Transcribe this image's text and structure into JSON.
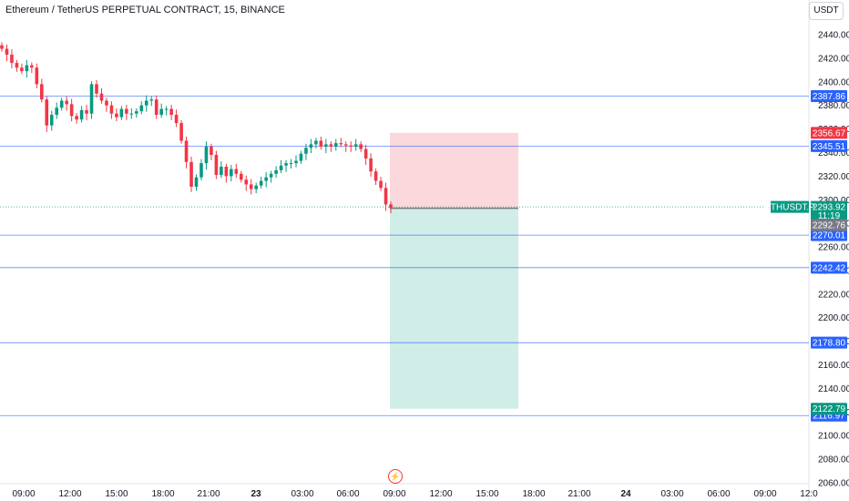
{
  "header": {
    "title": "Ethereum / TetherUS PERPETUAL CONTRACT, 15, BINANCE",
    "currency": "USDT"
  },
  "colors": {
    "up": "#089981",
    "down": "#f23645",
    "line_blue": "#2962ff",
    "stop_fill": "#f7c3c7",
    "target_fill": "#b8e3da",
    "last_price": "#089981"
  },
  "icons": {
    "event": "lightning-icon"
  },
  "chart_data": {
    "type": "candlestick",
    "symbol_label": "ETHUSDT.P",
    "countdown": "11:19",
    "y_axis": {
      "range": [
        2060,
        2450
      ],
      "ticks": [
        2060,
        2080,
        2100,
        2120,
        2140,
        2160,
        2180,
        2200,
        2220,
        2240,
        2260,
        2280,
        2300,
        2320,
        2340,
        2360,
        2380,
        2400,
        2420,
        2440
      ],
      "tick_labels": [
        "2060.00",
        "2080.00",
        "2100.00",
        "2120.00",
        "2140.00",
        "2160.00",
        "2180.00",
        "2200.00",
        "2220.00",
        "2240.00",
        "2260.00",
        "2280.00",
        "2300.00",
        "2320.00",
        "2340.00",
        "2360.00",
        "2380.00",
        "2400.00",
        "2420.00",
        "2440.00"
      ]
    },
    "x_axis": {
      "tick_labels": [
        "09:00",
        "12:00",
        "15:00",
        "18:00",
        "21:00",
        "23",
        "03:00",
        "06:00",
        "09:00",
        "12:00",
        "15:00",
        "18:00",
        "21:00",
        "24",
        "03:00",
        "06:00",
        "09:00",
        "12:0"
      ],
      "bold_labels": [
        "23",
        "24"
      ]
    },
    "horizontal_levels": [
      {
        "value": 2387.86,
        "label": "2387.86"
      },
      {
        "value": 2345.51,
        "label": "2345.51"
      },
      {
        "value": 2270.01,
        "label": "2270.01"
      },
      {
        "value": 2242.42,
        "label": "2242.42"
      },
      {
        "value": 2178.8,
        "label": "2178.80"
      },
      {
        "value": 2116.97,
        "label": "2116.97"
      }
    ],
    "position": {
      "stop": 2356.67,
      "stop_label": "2356.67",
      "entry": 2292.76,
      "entry_label": "2292.76",
      "target": 2122.79,
      "target_label": "2122.79"
    },
    "last_price": 2293.92,
    "last_price_label": "2293.92",
    "closes": [
      2428,
      2423,
      2416,
      2412,
      2409,
      2414,
      2412,
      2398,
      2385,
      2363,
      2372,
      2378,
      2384,
      2381,
      2371,
      2368,
      2376,
      2373,
      2398,
      2390,
      2384,
      2380,
      2373,
      2370,
      2377,
      2373,
      2373,
      2375,
      2380,
      2384,
      2385,
      2372,
      2377,
      2377,
      2372,
      2365,
      2350,
      2332,
      2311,
      2319,
      2331,
      2345,
      2338,
      2321,
      2328,
      2320,
      2326,
      2322,
      2317,
      2313,
      2309,
      2312,
      2316,
      2319,
      2322,
      2325,
      2329,
      2331,
      2331,
      2333,
      2339,
      2344,
      2347,
      2350,
      2345,
      2347,
      2345,
      2348,
      2347,
      2346,
      2345,
      2347,
      2343,
      2335,
      2324,
      2316,
      2310,
      2296,
      2293
    ],
    "opens": [
      2431,
      2428,
      2423,
      2416,
      2412,
      2409,
      2414,
      2412,
      2398,
      2385,
      2363,
      2372,
      2378,
      2384,
      2381,
      2371,
      2368,
      2376,
      2373,
      2398,
      2390,
      2384,
      2380,
      2373,
      2370,
      2377,
      2373,
      2373,
      2375,
      2380,
      2384,
      2385,
      2372,
      2377,
      2377,
      2372,
      2365,
      2350,
      2332,
      2311,
      2319,
      2331,
      2345,
      2338,
      2321,
      2328,
      2320,
      2326,
      2322,
      2317,
      2313,
      2309,
      2312,
      2316,
      2319,
      2322,
      2325,
      2329,
      2331,
      2331,
      2333,
      2339,
      2344,
      2347,
      2350,
      2345,
      2347,
      2345,
      2348,
      2347,
      2346,
      2345,
      2347,
      2343,
      2335,
      2324,
      2316,
      2310,
      2296
    ]
  }
}
